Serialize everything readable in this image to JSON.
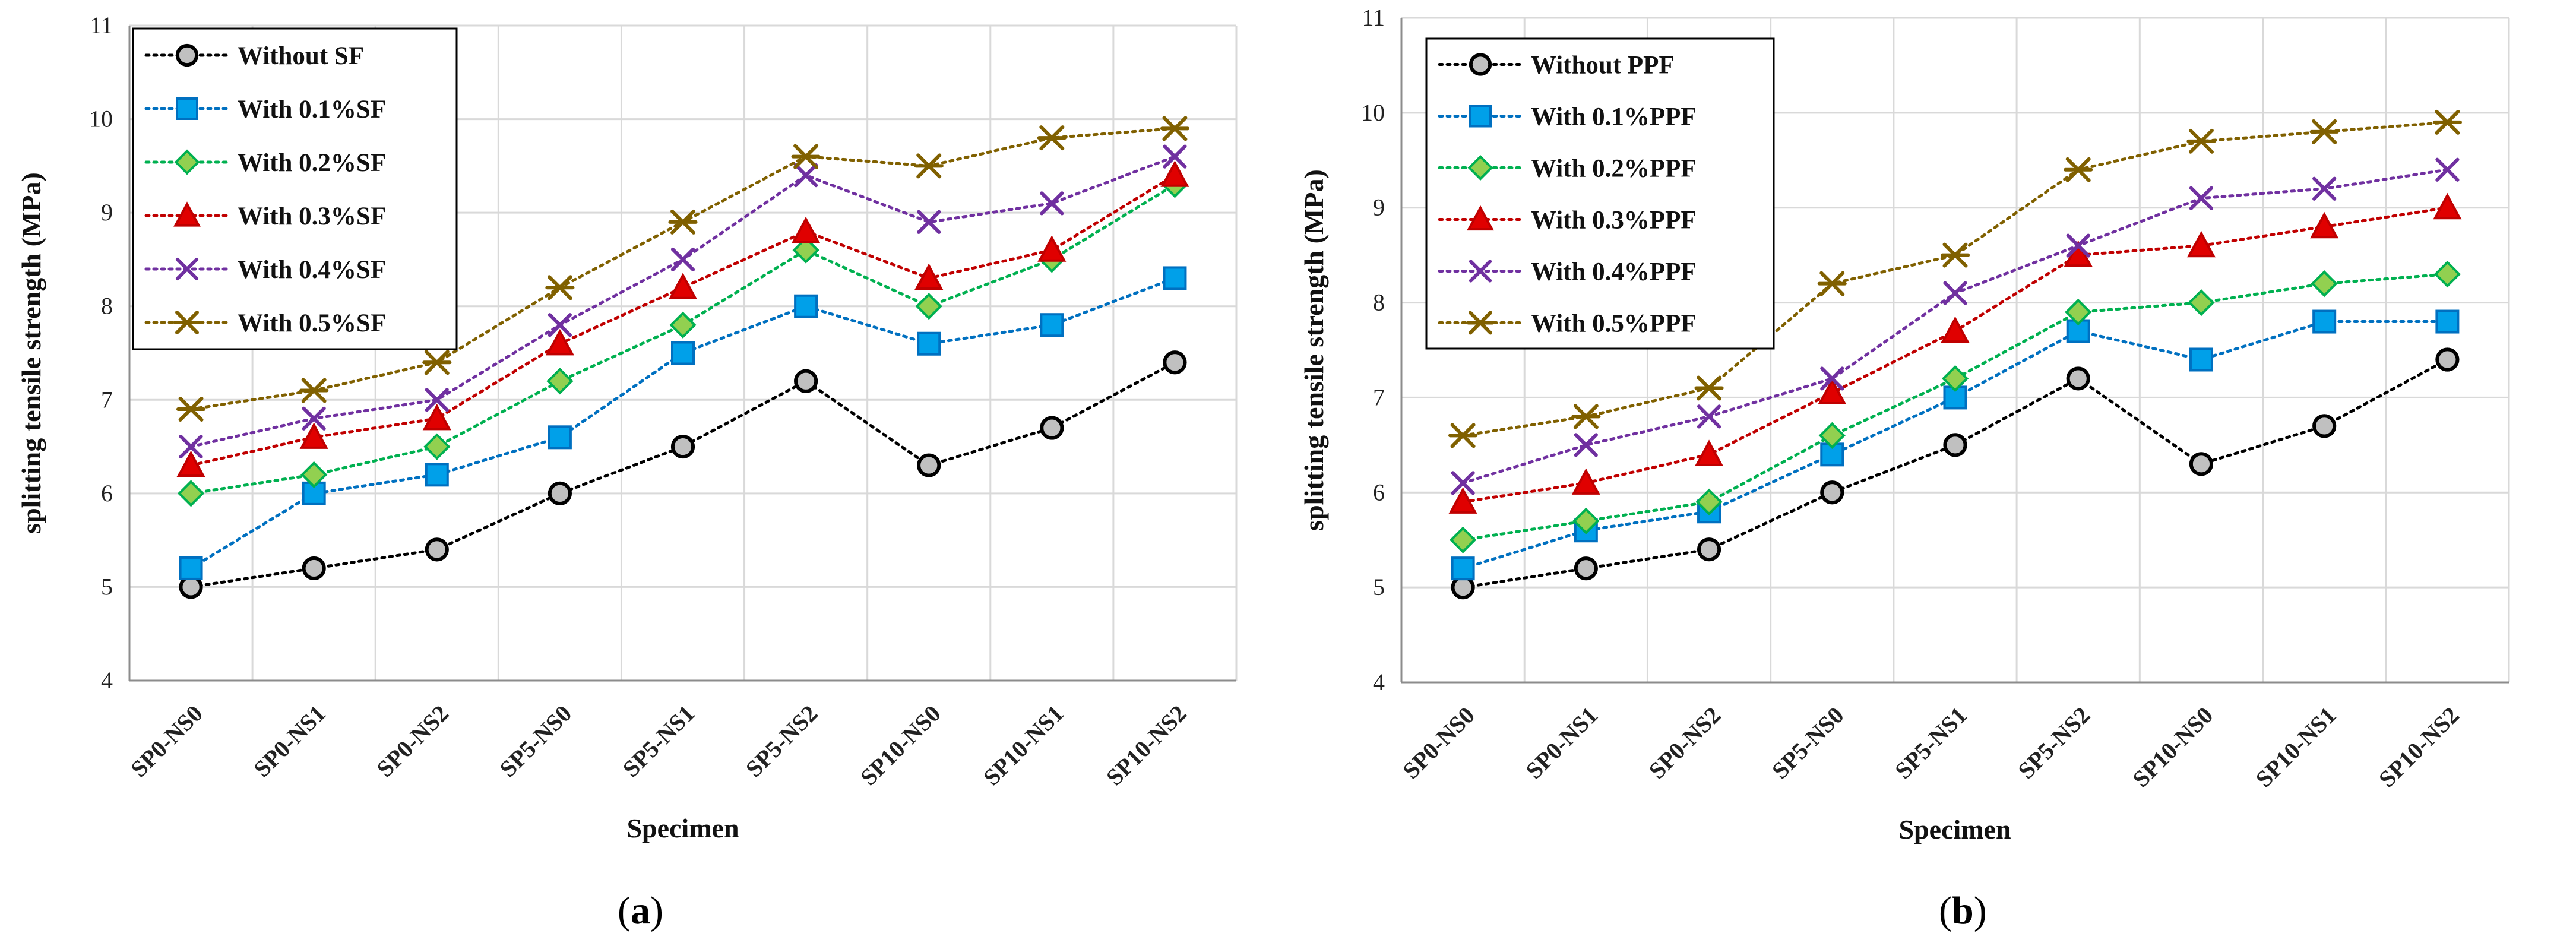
{
  "colors": {
    "grid": "#d9d9d9",
    "axis": "#8c8c8c",
    "frame": "#000000",
    "background": "#ffffff"
  },
  "chart_data": [
    {
      "type": "line",
      "panel_label": {
        "open": "(",
        "letter": "a",
        "close": ")"
      },
      "xlabel": "Specimen",
      "ylabel": "splitting  tensile strength (MPa)",
      "ylim": [
        4,
        11
      ],
      "yticks": [
        4,
        5,
        6,
        7,
        8,
        9,
        10,
        11
      ],
      "grid": true,
      "legend_position": "top-left",
      "categories": [
        "SP0-NS0",
        "SP0-NS1",
        "SP0-NS2",
        "SP5-NS0",
        "SP5-NS1",
        "SP5-NS2",
        "SP10-NS0",
        "SP10-NS1",
        "SP10-NS2"
      ],
      "series": [
        {
          "name": "Without SF",
          "marker": "circle",
          "color": "#000000",
          "fill": "#c0c0c0",
          "values": [
            5.0,
            5.2,
            5.4,
            6.0,
            6.5,
            7.2,
            6.3,
            6.7,
            7.4
          ]
        },
        {
          "name": "With 0.1%SF",
          "marker": "square",
          "color": "#0070c0",
          "fill": "#00a0e9",
          "values": [
            5.2,
            6.0,
            6.2,
            6.6,
            7.5,
            8.0,
            7.6,
            7.8,
            8.3
          ]
        },
        {
          "name": "With 0.2%SF",
          "marker": "diamond",
          "color": "#00b050",
          "fill": "#92d050",
          "values": [
            6.0,
            6.2,
            6.5,
            7.2,
            7.8,
            8.6,
            8.0,
            8.5,
            9.3
          ]
        },
        {
          "name": "With 0.3%SF",
          "marker": "triangle",
          "color": "#c00000",
          "fill": "#e00000",
          "values": [
            6.3,
            6.6,
            6.8,
            7.6,
            8.2,
            8.8,
            8.3,
            8.6,
            9.4
          ]
        },
        {
          "name": "With 0.4%SF",
          "marker": "x",
          "color": "#7030a0",
          "fill": "#7030a0",
          "values": [
            6.5,
            6.8,
            7.0,
            7.8,
            8.5,
            9.4,
            8.9,
            9.1,
            9.6
          ]
        },
        {
          "name": "With 0.5%SF",
          "marker": "star",
          "color": "#806000",
          "fill": "#806000",
          "values": [
            6.9,
            7.1,
            7.4,
            8.2,
            8.9,
            9.6,
            9.5,
            9.8,
            9.9
          ]
        }
      ]
    },
    {
      "type": "line",
      "panel_label": {
        "open": "(",
        "letter": "b",
        "close": ")"
      },
      "xlabel": "Specimen",
      "ylabel": "splitting  tensile strength (MPa)",
      "ylim": [
        4,
        11
      ],
      "yticks": [
        4,
        5,
        6,
        7,
        8,
        9,
        10,
        11
      ],
      "grid": true,
      "legend_position": "top-left",
      "categories": [
        "SP0-NS0",
        "SP0-NS1",
        "SP0-NS2",
        "SP5-NS0",
        "SP5-NS1",
        "SP5-NS2",
        "SP10-NS0",
        "SP10-NS1",
        "SP10-NS2"
      ],
      "series": [
        {
          "name": "Without PPF",
          "marker": "circle",
          "color": "#000000",
          "fill": "#c0c0c0",
          "values": [
            5.0,
            5.2,
            5.4,
            6.0,
            6.5,
            7.2,
            6.3,
            6.7,
            7.4
          ]
        },
        {
          "name": "With 0.1%PPF",
          "marker": "square",
          "color": "#0070c0",
          "fill": "#00a0e9",
          "values": [
            5.2,
            5.6,
            5.8,
            6.4,
            7.0,
            7.7,
            7.4,
            7.8,
            7.8
          ]
        },
        {
          "name": "With 0.2%PPF",
          "marker": "diamond",
          "color": "#00b050",
          "fill": "#92d050",
          "values": [
            5.5,
            5.7,
            5.9,
            6.6,
            7.2,
            7.9,
            8.0,
            8.2,
            8.3
          ]
        },
        {
          "name": "With 0.3%PPF",
          "marker": "triangle",
          "color": "#c00000",
          "fill": "#e00000",
          "values": [
            5.9,
            6.1,
            6.4,
            7.05,
            7.7,
            8.5,
            8.6,
            8.8,
            9.0
          ]
        },
        {
          "name": "With 0.4%PPF",
          "marker": "x",
          "color": "#7030a0",
          "fill": "#7030a0",
          "values": [
            6.1,
            6.5,
            6.8,
            7.2,
            8.1,
            8.6,
            9.1,
            9.2,
            9.4
          ]
        },
        {
          "name": "With 0.5%PPF",
          "marker": "star",
          "color": "#806000",
          "fill": "#806000",
          "values": [
            6.6,
            6.8,
            7.1,
            8.2,
            8.5,
            9.4,
            9.7,
            9.8,
            9.9
          ]
        }
      ]
    }
  ]
}
